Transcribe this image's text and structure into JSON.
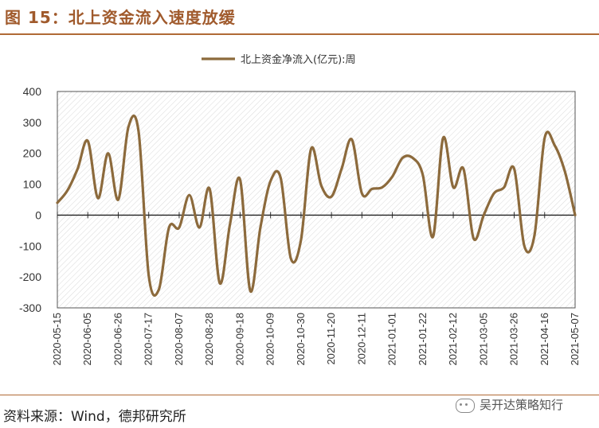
{
  "figure": {
    "title": "图 15：北上资金流入速度放缓",
    "source": "资料来源：Wind，德邦研究所",
    "watermark": "吴开达策略知行"
  },
  "chart_data": {
    "type": "line",
    "title": "",
    "xlabel": "",
    "ylabel": "",
    "ylim": [
      -300,
      400
    ],
    "yticks": [
      -300,
      -200,
      -100,
      0,
      100,
      200,
      300,
      400
    ],
    "grid": "hatched plot background",
    "legend_position": "top-center",
    "colors": {
      "series": "#8c6a3c",
      "title": "#a05a2c",
      "rule": "#b06a35"
    },
    "x_tick_labels": [
      "2020-05-15",
      "2020-06-05",
      "2020-06-26",
      "2020-07-17",
      "2020-08-07",
      "2020-08-28",
      "2020-09-18",
      "2020-10-09",
      "2020-10-30",
      "2020-11-20",
      "2020-12-11",
      "2021-01-01",
      "2021-01-22",
      "2021-02-12",
      "2021-03-05",
      "2021-03-26",
      "2021-04-16",
      "2021-05-07"
    ],
    "x": [
      "2020-05-15",
      "2020-05-22",
      "2020-05-29",
      "2020-06-05",
      "2020-06-12",
      "2020-06-19",
      "2020-06-26",
      "2020-07-03",
      "2020-07-10",
      "2020-07-17",
      "2020-07-24",
      "2020-07-31",
      "2020-08-07",
      "2020-08-14",
      "2020-08-21",
      "2020-08-28",
      "2020-09-04",
      "2020-09-11",
      "2020-09-18",
      "2020-09-25",
      "2020-10-02",
      "2020-10-09",
      "2020-10-16",
      "2020-10-23",
      "2020-10-30",
      "2020-11-06",
      "2020-11-13",
      "2020-11-20",
      "2020-11-27",
      "2020-12-04",
      "2020-12-11",
      "2020-12-18",
      "2020-12-25",
      "2021-01-01",
      "2021-01-08",
      "2021-01-15",
      "2021-01-22",
      "2021-01-29",
      "2021-02-05",
      "2021-02-12",
      "2021-02-19",
      "2021-02-26",
      "2021-03-05",
      "2021-03-12",
      "2021-03-19",
      "2021-03-26",
      "2021-04-02",
      "2021-04-09",
      "2021-04-16",
      "2021-04-23",
      "2021-04-30",
      "2021-05-07"
    ],
    "series": [
      {
        "name": "北上资金净流入(亿元):周",
        "values": [
          40,
          80,
          150,
          240,
          55,
          200,
          50,
          285,
          270,
          -195,
          -240,
          -40,
          -40,
          65,
          -40,
          85,
          -220,
          -30,
          115,
          -245,
          -40,
          110,
          120,
          -140,
          -80,
          215,
          95,
          60,
          150,
          245,
          70,
          85,
          90,
          125,
          185,
          185,
          130,
          -70,
          250,
          90,
          150,
          -75,
          0,
          70,
          90,
          150,
          -100,
          -65,
          250,
          225,
          140,
          0
        ]
      }
    ]
  }
}
